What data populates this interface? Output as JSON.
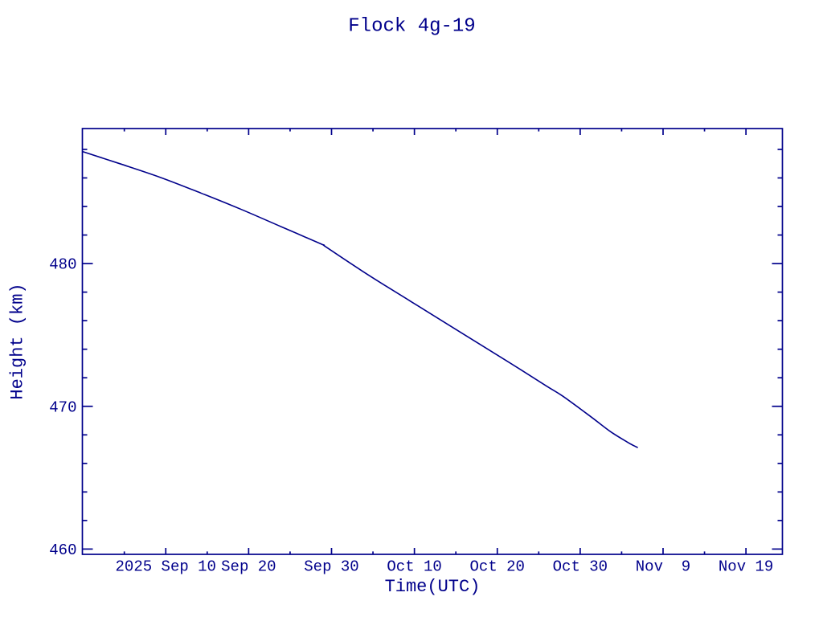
{
  "page": {
    "background": "#ffffff",
    "ink_color": "#00008b"
  },
  "chart_data": {
    "type": "line",
    "title": "Flock 4g-19",
    "xlabel": "Time(UTC)",
    "ylabel": "Height (km)",
    "x_axis": {
      "unit": "days relative to 2025 Sep 10 00:00 UTC",
      "domain": [
        -10.06,
        74.4
      ],
      "major_ticks": [
        {
          "offset": 0,
          "label": "2025 Sep 10"
        },
        {
          "offset": 10,
          "label": "Sep 20"
        },
        {
          "offset": 20,
          "label": "Sep 30"
        },
        {
          "offset": 30,
          "label": "Oct 10"
        },
        {
          "offset": 40,
          "label": "Oct 20"
        },
        {
          "offset": 50,
          "label": "Oct 30"
        },
        {
          "offset": 60,
          "label": "Nov  9"
        },
        {
          "offset": 70,
          "label": "Nov 19"
        }
      ],
      "minor_tick_step": 5
    },
    "y_axis": {
      "unit": "km",
      "domain": [
        459.63,
        489.46
      ],
      "major_ticks": [
        {
          "value": 460,
          "label": "460"
        },
        {
          "value": 470,
          "label": "470"
        },
        {
          "value": 480,
          "label": "480"
        }
      ],
      "minor_tick_step": 2
    },
    "grid": false,
    "legend": false,
    "series": [
      {
        "name": "Flock 4g-19 mean height",
        "points": [
          [
            -10.01,
            487.84
          ],
          [
            -5.45,
            486.98
          ],
          [
            -0.61,
            486.03
          ],
          [
            4.24,
            484.94
          ],
          [
            9.09,
            483.8
          ],
          [
            13.94,
            482.58
          ],
          [
            18.79,
            481.36
          ],
          [
            19.27,
            481.19
          ],
          [
            23.64,
            479.5
          ],
          [
            26.55,
            478.43
          ],
          [
            31.4,
            476.69
          ],
          [
            36.24,
            474.94
          ],
          [
            41.09,
            473.2
          ],
          [
            45.94,
            471.42
          ],
          [
            47.88,
            470.72
          ],
          [
            51.27,
            469.28
          ],
          [
            53.7,
            468.21
          ],
          [
            55.73,
            467.48
          ],
          [
            56.41,
            467.26
          ],
          [
            56.9,
            467.12
          ]
        ]
      }
    ]
  }
}
